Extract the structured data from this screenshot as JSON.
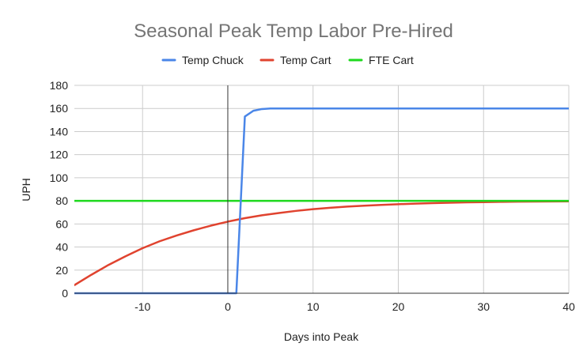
{
  "chart_data": {
    "type": "line",
    "title": "Seasonal Peak Temp Labor Pre-Hired",
    "xlabel": "Days into Peak",
    "ylabel": "UPH",
    "xlim": [
      -18,
      40
    ],
    "ylim": [
      0,
      180
    ],
    "x_ticks": [
      -10,
      0,
      10,
      20,
      30,
      40
    ],
    "y_ticks": [
      0,
      20,
      40,
      60,
      80,
      100,
      120,
      140,
      160,
      180
    ],
    "grid": true,
    "legend_position": "top",
    "series": [
      {
        "name": "Temp Chuck",
        "color": "#4A86E8",
        "points": [
          [
            -18,
            0
          ],
          [
            1,
            0
          ],
          [
            2,
            153
          ],
          [
            3,
            158
          ],
          [
            4,
            159.5
          ],
          [
            5,
            160
          ],
          [
            40,
            160
          ]
        ]
      },
      {
        "name": "Temp Cart",
        "color": "#E0432F",
        "points": [
          [
            -18,
            7
          ],
          [
            -16,
            16
          ],
          [
            -14,
            24.5
          ],
          [
            -12,
            32
          ],
          [
            -10,
            39
          ],
          [
            -8,
            45
          ],
          [
            -6,
            50
          ],
          [
            -4,
            54.5
          ],
          [
            -2,
            58.5
          ],
          [
            0,
            62
          ],
          [
            2,
            65
          ],
          [
            4,
            67.5
          ],
          [
            6,
            69.5
          ],
          [
            8,
            71.3
          ],
          [
            10,
            72.8
          ],
          [
            12,
            74
          ],
          [
            14,
            75
          ],
          [
            16,
            75.8
          ],
          [
            18,
            76.5
          ],
          [
            20,
            77.1
          ],
          [
            22,
            77.6
          ],
          [
            24,
            78
          ],
          [
            26,
            78.4
          ],
          [
            28,
            78.7
          ],
          [
            30,
            78.9
          ],
          [
            32,
            79.1
          ],
          [
            34,
            79.3
          ],
          [
            36,
            79.4
          ],
          [
            38,
            79.5
          ],
          [
            40,
            79.6
          ]
        ]
      },
      {
        "name": "FTE Cart",
        "color": "#1ED91E",
        "points": [
          [
            -18,
            80
          ],
          [
            40,
            80
          ]
        ]
      }
    ]
  }
}
